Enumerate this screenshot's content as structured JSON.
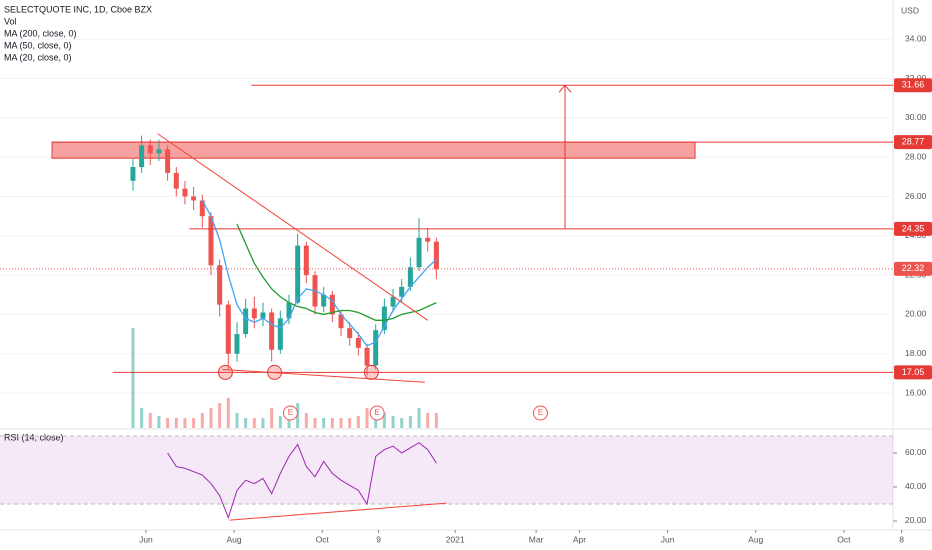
{
  "chart_data": {
    "type": "candlestick",
    "title": "SELECTQUOTE INC, 1D, Cboe BZX",
    "indicators": [
      "Vol",
      "MA (200, close, 0)",
      "MA (50, close, 0)",
      "MA (20, close, 0)"
    ],
    "currency": "USD",
    "up_color": "#26a69a",
    "down_color": "#ef5350",
    "x": [
      -9,
      -3,
      3,
      9,
      15,
      21,
      27,
      33,
      39,
      45,
      51,
      57,
      63,
      69,
      75,
      81,
      87,
      93,
      99,
      105,
      111,
      117,
      123,
      129,
      135,
      141,
      147,
      153,
      159,
      165,
      171,
      177,
      183,
      189,
      195,
      201
    ],
    "open": [
      26.8,
      27.5,
      28.6,
      28.2,
      28.4,
      27.2,
      26.4,
      26.0,
      25.8,
      25.0,
      22.5,
      20.5,
      18.0,
      19.0,
      20.3,
      19.8,
      20.1,
      18.2,
      19.8,
      20.6,
      23.5,
      22.0,
      20.4,
      21.0,
      20.0,
      19.3,
      18.8,
      18.3,
      17.4,
      19.2,
      20.4,
      20.9,
      21.4,
      22.4,
      23.9,
      23.7
    ],
    "high": [
      27.9,
      29.1,
      28.9,
      28.9,
      28.6,
      27.5,
      26.8,
      26.5,
      26.1,
      25.2,
      22.8,
      20.7,
      19.6,
      20.8,
      20.9,
      20.6,
      20.3,
      20.2,
      21.0,
      24.1,
      23.7,
      22.2,
      21.4,
      21.2,
      20.2,
      19.6,
      19.1,
      18.5,
      19.5,
      20.8,
      21.3,
      21.8,
      22.9,
      24.9,
      24.4,
      23.9
    ],
    "low": [
      26.3,
      27.2,
      27.6,
      27.8,
      26.8,
      26.0,
      25.6,
      25.3,
      24.4,
      22.0,
      19.9,
      17.2,
      17.6,
      18.8,
      19.3,
      19.4,
      17.6,
      18.0,
      19.5,
      20.5,
      21.6,
      20.0,
      20.1,
      19.6,
      18.9,
      18.4,
      17.9,
      16.9,
      17.2,
      19.0,
      20.1,
      20.6,
      21.2,
      22.2,
      23.2,
      21.8
    ],
    "close": [
      27.5,
      28.6,
      28.2,
      28.4,
      27.2,
      26.4,
      26.0,
      25.8,
      25.0,
      22.5,
      20.5,
      18.0,
      19.0,
      20.3,
      19.8,
      20.1,
      18.2,
      19.8,
      20.6,
      23.5,
      22.0,
      20.4,
      21.0,
      20.0,
      19.3,
      18.8,
      18.3,
      17.4,
      19.2,
      20.4,
      20.9,
      21.4,
      22.4,
      23.9,
      23.7,
      22.3
    ],
    "volume": [
      10,
      2,
      1.5,
      1.2,
      1,
      1,
      1,
      1,
      1.5,
      2,
      2.5,
      3,
      1.5,
      1,
      1,
      1,
      2,
      1.2,
      1,
      2.5,
      1.5,
      1,
      1,
      1,
      1,
      1,
      1.2,
      2,
      2,
      1.5,
      1.2,
      1,
      1.2,
      2,
      1.5,
      1.5
    ],
    "series": [
      {
        "name": "MA (20, close, 0)",
        "color": "#42a5f5",
        "values": [
          null,
          null,
          null,
          null,
          null,
          null,
          null,
          null,
          25.8,
          25.0,
          23.8,
          22.0,
          20.5,
          19.8,
          19.6,
          19.8,
          19.5,
          19.3,
          19.8,
          20.8,
          21.3,
          21.2,
          21.0,
          20.7,
          20.0,
          19.5,
          19.0,
          18.4,
          18.6,
          19.4,
          20.2,
          20.8,
          21.4,
          21.9,
          22.4,
          22.8
        ]
      },
      {
        "name": "MA (50, close, 0)",
        "color": "#1e9e2e",
        "values": [
          null,
          null,
          null,
          null,
          null,
          null,
          null,
          null,
          null,
          null,
          null,
          null,
          24.6,
          23.6,
          22.6,
          21.9,
          21.3,
          20.9,
          20.6,
          20.4,
          20.3,
          20.1,
          20.0,
          20.1,
          20.2,
          20.2,
          20.1,
          19.9,
          19.7,
          19.7,
          19.8,
          20.0,
          20.1,
          20.2,
          20.4,
          20.6
        ]
      }
    ],
    "xlim": [
      -101,
      517
    ],
    "xticks": [
      {
        "value": 0,
        "label": "Jun"
      },
      {
        "value": 61,
        "label": "Aug"
      },
      {
        "value": 122,
        "label": "Oct"
      },
      {
        "value": 161,
        "label": "9"
      },
      {
        "value": 214,
        "label": "2021"
      },
      {
        "value": 270,
        "label": "Mar"
      },
      {
        "value": 300,
        "label": "Apr"
      },
      {
        "value": 361,
        "label": "Jun"
      },
      {
        "value": 422,
        "label": "Aug"
      },
      {
        "value": 483,
        "label": "Oct"
      },
      {
        "value": 523,
        "label": "8"
      }
    ],
    "ylim": [
      14.22,
      36.0
    ],
    "yticks": [
      {
        "value": 16,
        "label": "16.00"
      },
      {
        "value": 18,
        "label": "18.00"
      },
      {
        "value": 20,
        "label": "20.00"
      },
      {
        "value": 22,
        "label": "22.00"
      },
      {
        "value": 24,
        "label": "24.00"
      },
      {
        "value": 26,
        "label": "26.00"
      },
      {
        "value": 28,
        "label": "28.00"
      },
      {
        "value": 30,
        "label": "30.00"
      },
      {
        "value": 32,
        "label": "32.00"
      },
      {
        "value": 34,
        "label": "34.00"
      }
    ],
    "levels": [
      {
        "value": 31.66,
        "label": "31.66",
        "x_start": 73
      },
      {
        "value": 28.77,
        "label": "28.77",
        "x_start": -65
      },
      {
        "value": 24.35,
        "label": "24.35",
        "x_start": 30
      },
      {
        "value": 17.05,
        "label": "17.05",
        "x_start": -23
      }
    ],
    "last_price": {
      "value": 22.32,
      "label": "22.32"
    },
    "zone": {
      "low": 27.95,
      "high": 28.77,
      "x": [
        -65,
        380
      ]
    },
    "trendlines": [
      {
        "x": [
          8,
          195
        ],
        "y": [
          29.2,
          19.7
        ]
      },
      {
        "x": [
          53,
          193
        ],
        "y": [
          17.2,
          16.55
        ]
      }
    ],
    "target_arrow": {
      "x": 290,
      "from": 24.35,
      "to": 31.66
    },
    "markers": {
      "x": [
        55,
        89,
        156
      ],
      "y": [
        17.05,
        17.05,
        17.05
      ]
    },
    "earnings": {
      "x": [
        100,
        160,
        273
      ],
      "label": "E"
    },
    "rsi": {
      "name": "RSI (14, close)",
      "color": "#9c27b0",
      "values": [
        null,
        null,
        null,
        null,
        60,
        52,
        51,
        49,
        47,
        42,
        35,
        22,
        38,
        44,
        42,
        45,
        36,
        48,
        58,
        65,
        52,
        46,
        55,
        48,
        44,
        41,
        38,
        30,
        58,
        62,
        64,
        60,
        63,
        66,
        62,
        54
      ],
      "ylim": [
        14.7,
        73.5
      ],
      "yticks": [
        {
          "value": 20,
          "label": "20.00"
        },
        {
          "value": 40,
          "label": "40.00"
        },
        {
          "value": 60,
          "label": "60.00"
        }
      ],
      "band": [
        30,
        70
      ],
      "trendline": {
        "x": [
          58,
          208
        ],
        "y": [
          20.5,
          30.5
        ]
      }
    }
  }
}
